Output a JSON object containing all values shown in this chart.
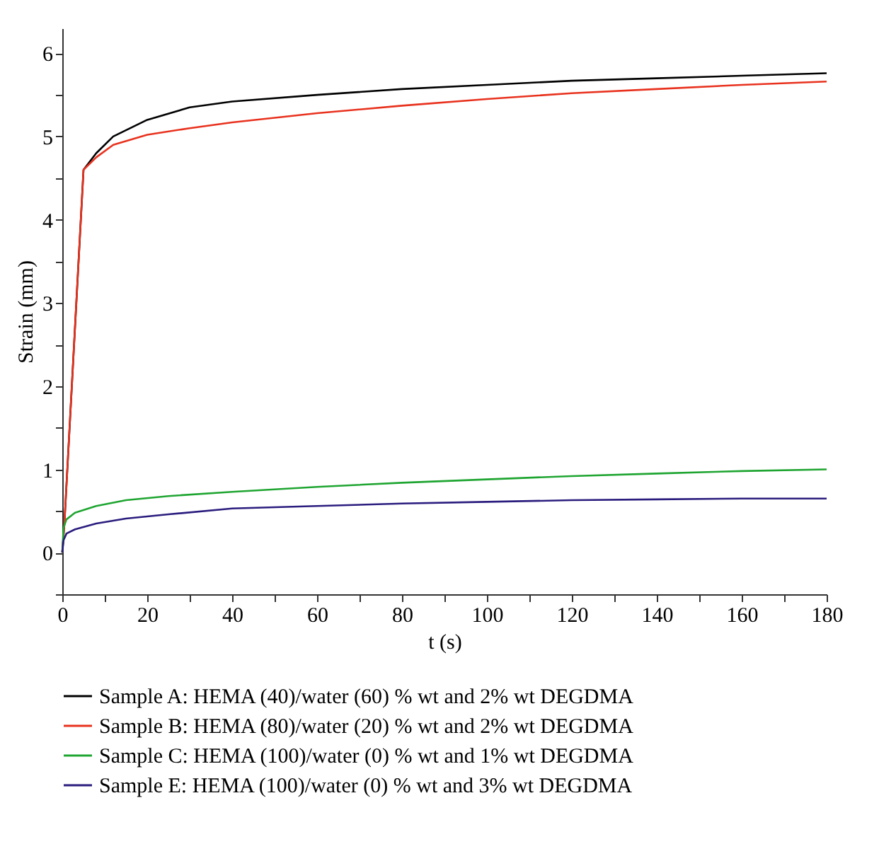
{
  "chart_data": {
    "type": "line",
    "xlabel": "t (s)",
    "ylabel": "Strain (mm)",
    "xlim": [
      0,
      180
    ],
    "xticks": [
      0,
      {
        "value": 10,
        "label": null
      },
      20,
      {
        "value": 30,
        "label": null
      },
      40,
      {
        "value": 50,
        "label": null
      },
      60,
      {
        "value": 70,
        "label": null
      },
      80,
      {
        "value": 90,
        "label": null
      },
      100,
      {
        "value": 110,
        "label": null
      },
      120,
      {
        "value": 130,
        "label": null
      },
      140,
      {
        "value": 150,
        "label": null
      },
      160,
      {
        "value": 170,
        "label": null
      },
      180
    ],
    "ylim": [
      -0.5,
      6.3
    ],
    "yticks": [
      {
        "value": -0.5,
        "label": null
      },
      0,
      {
        "value": 0.5,
        "label": null
      },
      1,
      {
        "value": 1.5,
        "label": null
      },
      2,
      {
        "value": 2.5,
        "label": null
      },
      3,
      {
        "value": 3.5,
        "label": null
      },
      4,
      {
        "value": 4.5,
        "label": null
      },
      5,
      {
        "value": 5.5,
        "label": null
      },
      6
    ],
    "grid": false,
    "legend": "bottom",
    "marker": "none",
    "line_style": "solid",
    "series": [
      {
        "name": "Sample A: HEMA (40)/water (60) % wt and 2% wt DEGDMA",
        "color": "#000000",
        "x": [
          0,
          0.5,
          5,
          8,
          12,
          20,
          30,
          40,
          60,
          80,
          100,
          120,
          140,
          160,
          180
        ],
        "values": [
          0,
          0.35,
          4.6,
          4.8,
          5.0,
          5.2,
          5.35,
          5.42,
          5.5,
          5.57,
          5.62,
          5.67,
          5.7,
          5.73,
          5.76
        ]
      },
      {
        "name": "Sample B: HEMA (80)/water (20) % wt and 2% wt DEGDMA",
        "color": "#e8321e",
        "x": [
          0,
          0.5,
          5,
          8,
          12,
          20,
          30,
          40,
          60,
          80,
          100,
          120,
          140,
          160,
          180
        ],
        "values": [
          0,
          0.35,
          4.6,
          4.75,
          4.9,
          5.02,
          5.1,
          5.17,
          5.28,
          5.37,
          5.45,
          5.52,
          5.57,
          5.62,
          5.66
        ]
      },
      {
        "name": "Sample C: HEMA (100)/water (0) % wt and 1% wt DEGDMA",
        "color": "#1fa531",
        "x": [
          0,
          0.3,
          1,
          3,
          8,
          15,
          25,
          40,
          60,
          80,
          100,
          120,
          140,
          160,
          180
        ],
        "values": [
          0,
          0.3,
          0.4,
          0.48,
          0.56,
          0.63,
          0.68,
          0.73,
          0.79,
          0.84,
          0.88,
          0.92,
          0.95,
          0.98,
          1.0
        ]
      },
      {
        "name": "Sample E: HEMA (100)/water (0) % wt and 3% wt DEGDMA",
        "color": "#2a1d7e",
        "x": [
          0,
          0.3,
          1,
          3,
          8,
          15,
          25,
          40,
          60,
          80,
          100,
          120,
          140,
          160,
          180
        ],
        "values": [
          0,
          0.15,
          0.23,
          0.28,
          0.35,
          0.41,
          0.46,
          0.53,
          0.56,
          0.59,
          0.61,
          0.63,
          0.64,
          0.65,
          0.65
        ]
      }
    ]
  }
}
